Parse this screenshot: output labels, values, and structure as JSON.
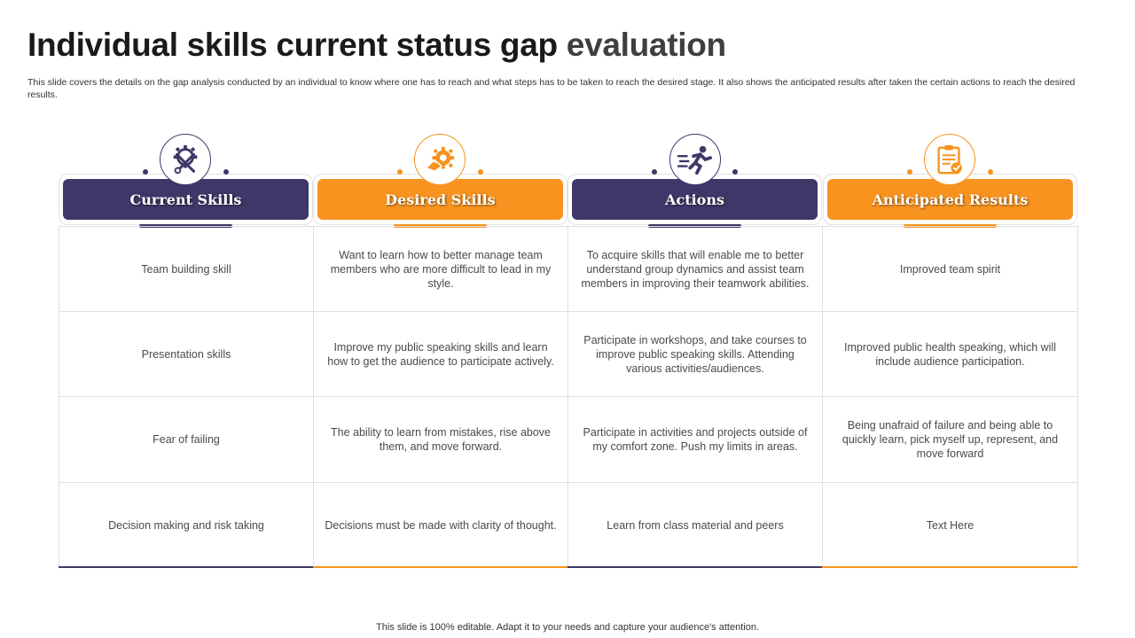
{
  "title": {
    "main": "Individual skills current status gap",
    "accent": "evaluation"
  },
  "subtitle": "This slide covers the details on the gap analysis conducted by an individual to know where one has to reach  and what steps has to be taken to reach the desired stage. It also shows the anticipated results after taken the certain actions  to reach the desired results.",
  "columns": [
    {
      "label": "Current Skills",
      "icon": "tools-gear-icon",
      "color": "#3d3867"
    },
    {
      "label": "Desired Skills",
      "icon": "hand-gear-icon",
      "color": "#f7931e"
    },
    {
      "label": "Actions",
      "icon": "runner-icon",
      "color": "#3d3867"
    },
    {
      "label": "Anticipated  Results",
      "icon": "clipboard-check-icon",
      "color": "#f7931e"
    }
  ],
  "rows": [
    [
      "Team building skill",
      "Want to learn how to better manage team members who are more difficult to lead in my style.",
      "To acquire skills that will enable me to better understand group dynamics and assist team members in improving their teamwork abilities.",
      "Improved  team spirit"
    ],
    [
      "Presentation skills",
      "Improve  my public speaking skills and learn how to get the audience to participate actively.",
      "Participate in workshops, and take courses to improve  public speaking skills. Attending various  activities/audiences.",
      "Improved  public health speaking, which will include audience participation."
    ],
    [
      "Fear of failing",
      "The ability to learn from mistakes, rise above  them, and move forward.",
      "Participate in activities and projects outside of my comfort zone. Push my limits in areas.",
      "Being unafraid  of failure and being able to quickly learn,  pick myself up, represent,  and move forward"
    ],
    [
      "Decision making and risk taking",
      "Decisions must be made with clarity of thought.",
      "Learn  from  class material and  peers",
      "Text Here"
    ]
  ],
  "footer": "This slide is 100% editable. Adapt it to your needs and capture your audience's attention."
}
